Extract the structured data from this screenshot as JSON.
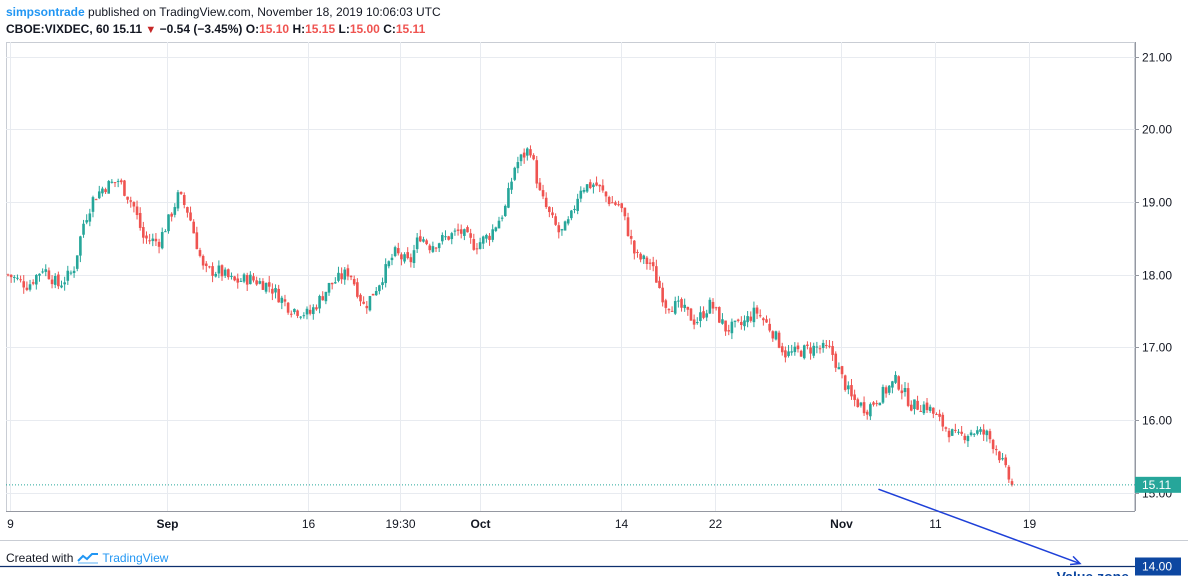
{
  "header": {
    "author": "simpsontrade",
    "published": " published on TradingView.com, November 18, 2019 10:06:03 UTC"
  },
  "ohlc": {
    "symbol": "CBOE:VIXDEC, 60",
    "last": "15.11",
    "arrow": "▼",
    "change": "−0.54 (−3.45%)",
    "o_label": "O:",
    "o_value": "15.10",
    "h_label": "H:",
    "h_value": "15.15",
    "l_label": "L:",
    "l_value": "15.00",
    "c_label": "C:",
    "c_value": "15.11"
  },
  "footer": {
    "created_with": "Created with",
    "brand": "TradingView"
  },
  "colors": {
    "up": "#26a69a",
    "down": "#ef5350",
    "grid": "#e8ebf0",
    "axis_label_bg_price": "#1e88e5",
    "axis_label_bg_level": "#0d47a1",
    "level_line": "#0d2f6e",
    "annotation": "#0d47a1",
    "arrow": "#1e40d8"
  },
  "chart_data": {
    "type": "candlestick",
    "symbol": "CBOE:VIXDEC",
    "interval": "60",
    "ylim": [
      14.75,
      21.2
    ],
    "y_ticks": [
      "21.00",
      "20.00",
      "19.00",
      "18.00",
      "17.00",
      "16.00",
      "15.00"
    ],
    "x_tick_labels": [
      "9",
      "Sep",
      "16",
      "19:30",
      "Oct",
      "14",
      "22",
      "Nov",
      "11",
      "19"
    ],
    "current_price": 15.11,
    "current_price_label": "15.11",
    "horizontal_level": 14.0,
    "horizontal_level_label": "14.00",
    "annotation": "Value zone",
    "arrow": {
      "from": {
        "x_index": 0.862,
        "y": 15.05
      },
      "to": {
        "x_index": 0.97,
        "y": 14.0
      }
    },
    "close_path": [
      [
        0.0,
        18.0
      ],
      [
        0.02,
        17.85
      ],
      [
        0.035,
        18.1
      ],
      [
        0.05,
        17.85
      ],
      [
        0.065,
        18.05
      ],
      [
        0.075,
        18.7
      ],
      [
        0.085,
        19.05
      ],
      [
        0.095,
        19.2
      ],
      [
        0.11,
        19.3
      ],
      [
        0.125,
        18.95
      ],
      [
        0.135,
        18.5
      ],
      [
        0.15,
        18.45
      ],
      [
        0.16,
        18.75
      ],
      [
        0.17,
        19.1
      ],
      [
        0.18,
        18.85
      ],
      [
        0.195,
        18.05
      ],
      [
        0.21,
        18.05
      ],
      [
        0.225,
        17.9
      ],
      [
        0.24,
        17.95
      ],
      [
        0.26,
        17.85
      ],
      [
        0.28,
        17.55
      ],
      [
        0.3,
        17.45
      ],
      [
        0.32,
        17.85
      ],
      [
        0.34,
        18.05
      ],
      [
        0.355,
        17.55
      ],
      [
        0.37,
        17.9
      ],
      [
        0.385,
        18.3
      ],
      [
        0.4,
        18.15
      ],
      [
        0.41,
        18.55
      ],
      [
        0.42,
        18.4
      ],
      [
        0.435,
        18.5
      ],
      [
        0.45,
        18.6
      ],
      [
        0.465,
        18.4
      ],
      [
        0.48,
        18.55
      ],
      [
        0.495,
        18.9
      ],
      [
        0.505,
        19.5
      ],
      [
        0.52,
        19.75
      ],
      [
        0.53,
        19.1
      ],
      [
        0.54,
        18.8
      ],
      [
        0.55,
        18.55
      ],
      [
        0.56,
        18.75
      ],
      [
        0.57,
        19.2
      ],
      [
        0.585,
        19.25
      ],
      [
        0.6,
        19.0
      ],
      [
        0.61,
        18.95
      ],
      [
        0.625,
        18.25
      ],
      [
        0.64,
        18.15
      ],
      [
        0.655,
        17.6
      ],
      [
        0.67,
        17.55
      ],
      [
        0.685,
        17.35
      ],
      [
        0.7,
        17.6
      ],
      [
        0.715,
        17.25
      ],
      [
        0.73,
        17.3
      ],
      [
        0.745,
        17.5
      ],
      [
        0.76,
        17.25
      ],
      [
        0.775,
        16.9
      ],
      [
        0.79,
        16.95
      ],
      [
        0.805,
        17.0
      ],
      [
        0.82,
        16.95
      ],
      [
        0.83,
        16.6
      ],
      [
        0.84,
        16.3
      ],
      [
        0.855,
        16.15
      ],
      [
        0.87,
        16.35
      ],
      [
        0.885,
        16.55
      ],
      [
        0.9,
        16.2
      ],
      [
        0.915,
        16.2
      ],
      [
        0.93,
        15.95
      ],
      [
        0.945,
        15.75
      ],
      [
        0.96,
        15.85
      ],
      [
        0.975,
        15.8
      ],
      [
        0.985,
        15.6
      ],
      [
        0.995,
        15.25
      ],
      [
        1.0,
        15.11
      ]
    ]
  }
}
